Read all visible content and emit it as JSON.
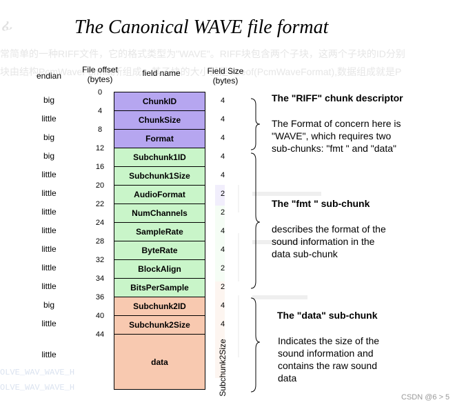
{
  "title": "The Canonical WAVE file format",
  "background_text": {
    "line1": "常简单的一种RIFF文件，它的格式类型为\"WAVE\"。RIFF块包含两个子块，这两个子块的ID分别",
    "line2": "块由结构PcmWaveFormat所组成，其子块的大小就是sizeof(PcmWaveFormat),数据组成就是P",
    "code1": "OLVE_WAV_WAVE_H",
    "code2": "OLVE_WAV_WAVE_H"
  },
  "headers": {
    "endian": "endian",
    "offset_line1": "File offset",
    "offset_line2": "(bytes)",
    "field": "field name",
    "size_line1": "Field Size",
    "size_line2": "(bytes)"
  },
  "offsets": [
    "0",
    "4",
    "8",
    "12",
    "16",
    "20",
    "22",
    "24",
    "28",
    "32",
    "34",
    "36",
    "40",
    "44"
  ],
  "fields": [
    {
      "name": "ChunkID",
      "endian": "big",
      "size": "4",
      "group": "riff"
    },
    {
      "name": "ChunkSize",
      "endian": "little",
      "size": "4",
      "group": "riff"
    },
    {
      "name": "Format",
      "endian": "big",
      "size": "4",
      "group": "riff"
    },
    {
      "name": "Subchunk1ID",
      "endian": "big",
      "size": "4",
      "group": "fmt"
    },
    {
      "name": "Subchunk1Size",
      "endian": "little",
      "size": "4",
      "group": "fmt"
    },
    {
      "name": "AudioFormat",
      "endian": "little",
      "size": "2",
      "group": "fmt"
    },
    {
      "name": "NumChannels",
      "endian": "little",
      "size": "2",
      "group": "fmt"
    },
    {
      "name": "SampleRate",
      "endian": "little",
      "size": "4",
      "group": "fmt"
    },
    {
      "name": "ByteRate",
      "endian": "little",
      "size": "4",
      "group": "fmt"
    },
    {
      "name": "BlockAlign",
      "endian": "little",
      "size": "2",
      "group": "fmt"
    },
    {
      "name": "BitsPerSample",
      "endian": "little",
      "size": "2",
      "group": "fmt"
    },
    {
      "name": "Subchunk2ID",
      "endian": "big",
      "size": "4",
      "group": "data"
    },
    {
      "name": "Subchunk2Size",
      "endian": "little",
      "size": "4",
      "group": "data"
    },
    {
      "name": "data",
      "endian": "little",
      "size": "Subchunk2Size",
      "group": "data"
    }
  ],
  "sections": {
    "riff": {
      "title": "The \"RIFF\" chunk descriptor",
      "body": "The Format of concern here is \"WAVE\", which requires two sub-chunks: \"fmt \" and \"data\""
    },
    "fmt": {
      "title": "The \"fmt \" sub-chunk",
      "body": "describes the format of the sound information in the data sub-chunk"
    },
    "data": {
      "title": "The \"data\" sub-chunk",
      "body": "Indicates the size of the sound information and contains the raw sound data"
    }
  },
  "watermark": "CSDN @6 > 5",
  "colors": {
    "riff": "#b6a6f0",
    "fmt": "#c9f5c9",
    "data": "#f8c9b0"
  }
}
